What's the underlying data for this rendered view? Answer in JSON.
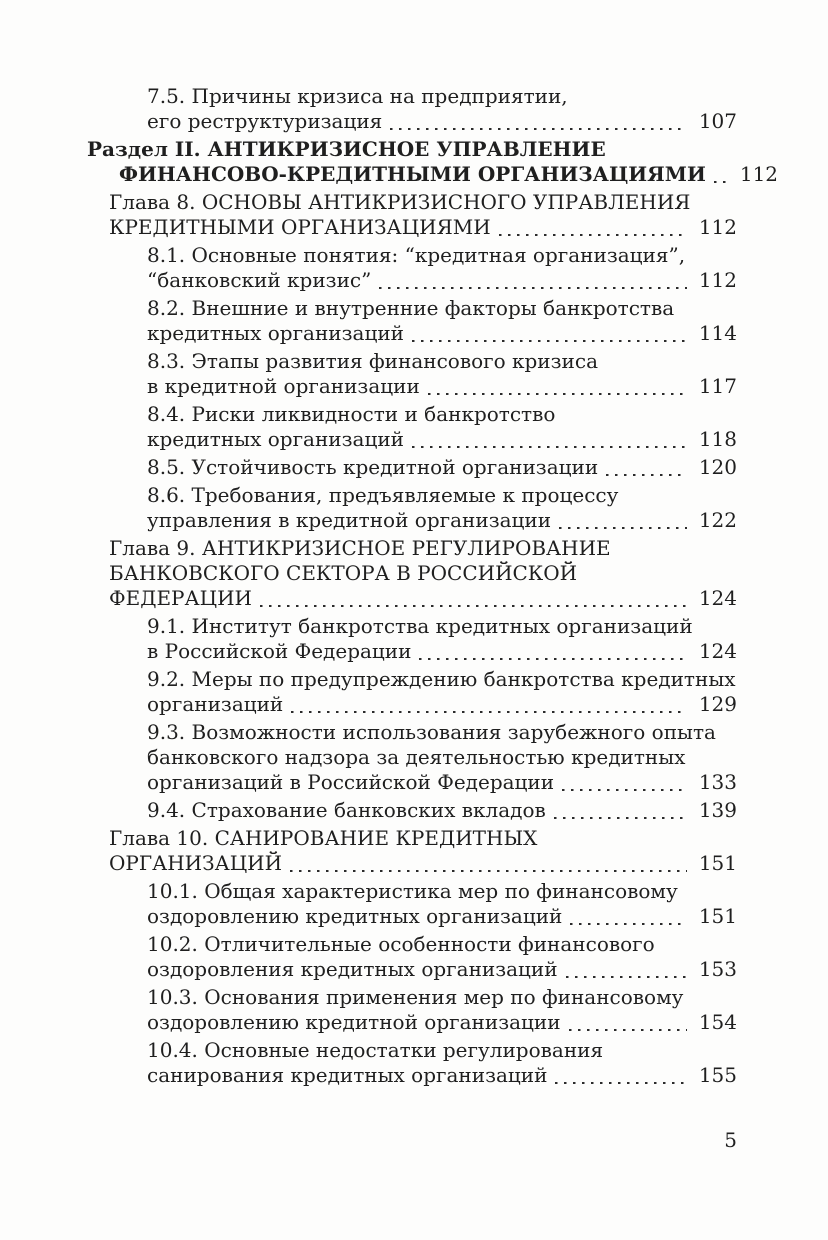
{
  "document": {
    "kind": "book-table-of-contents-page",
    "language": "ru",
    "page_number": "5",
    "text_color": "#1f1f1f",
    "background_color": "#fdfdfc"
  },
  "toc": {
    "entries": [
      {
        "level": "sub",
        "lines": [
          "7.5. Причины кризиса на предприятии,",
          "его реструктуризация"
        ],
        "page": "107"
      },
      {
        "level": "razdel",
        "bold": true,
        "lines": [
          "Раздел II. АНТИКРИЗИСНОЕ УПРАВЛЕНИЕ",
          "ФИНАНСОВО-КРЕДИТНЫМИ ОРГАНИЗАЦИЯМИ"
        ],
        "page": "112"
      },
      {
        "level": "glava",
        "lines": [
          "Глава 8. ОСНОВЫ АНТИКРИЗИСНОГО УПРАВЛЕНИЯ",
          "КРЕДИТНЫМИ ОРГАНИЗАЦИЯМИ"
        ],
        "page": "112"
      },
      {
        "level": "sub",
        "lines": [
          "8.1. Основные понятия: “кредитная организация”,",
          "“банковский кризис”"
        ],
        "page": "112"
      },
      {
        "level": "sub",
        "lines": [
          "8.2. Внешние и внутренние факторы банкротства",
          "кредитных организаций"
        ],
        "page": "114"
      },
      {
        "level": "sub",
        "lines": [
          "8.3. Этапы развития финансового кризиса",
          "в кредитной организации"
        ],
        "page": "117"
      },
      {
        "level": "sub",
        "lines": [
          "8.4. Риски ликвидности и банкротство",
          "кредитных организаций"
        ],
        "page": "118"
      },
      {
        "level": "sub",
        "lines": [
          "8.5. Устойчивость кредитной организации"
        ],
        "page": "120"
      },
      {
        "level": "sub",
        "lines": [
          "8.6. Требования, предъявляемые к процессу",
          "управления в кредитной организации"
        ],
        "page": "122"
      },
      {
        "level": "glava",
        "lines": [
          "Глава 9. АНТИКРИЗИСНОЕ РЕГУЛИРОВАНИЕ",
          "БАНКОВСКОГО СЕКТОРА В РОССИЙСКОЙ",
          "ФЕДЕРАЦИИ"
        ],
        "page": "124"
      },
      {
        "level": "sub",
        "lines": [
          "9.1. Институт банкротства кредитных организаций",
          "в Российской Федерации"
        ],
        "page": "124"
      },
      {
        "level": "sub",
        "lines": [
          "9.2. Меры по предупреждению банкротства кредитных",
          "организаций"
        ],
        "page": "129"
      },
      {
        "level": "sub",
        "lines": [
          "9.3. Возможности использования зарубежного опыта",
          "банковского надзора за деятельностью кредитных",
          "организаций в Российской Федерации"
        ],
        "page": "133"
      },
      {
        "level": "sub",
        "lines": [
          "9.4. Страхование банковских вкладов"
        ],
        "page": "139"
      },
      {
        "level": "glava",
        "lines": [
          "Глава 10. САНИРОВАНИЕ КРЕДИТНЫХ",
          "ОРГАНИЗАЦИЙ"
        ],
        "page": "151"
      },
      {
        "level": "sub",
        "lines": [
          "10.1. Общая характеристика мер по финансовому",
          "оздоровлению кредитных организаций"
        ],
        "page": "151"
      },
      {
        "level": "sub",
        "lines": [
          "10.2. Отличительные особенности финансового",
          "оздоровления кредитных организаций"
        ],
        "page": "153"
      },
      {
        "level": "sub",
        "lines": [
          "10.3. Основания применения мер по финансовому",
          "оздоровлению кредитной организации"
        ],
        "page": "154"
      },
      {
        "level": "sub",
        "lines": [
          "10.4. Основные недостатки регулирования",
          "санирования кредитных организаций"
        ],
        "page": "155"
      }
    ]
  }
}
